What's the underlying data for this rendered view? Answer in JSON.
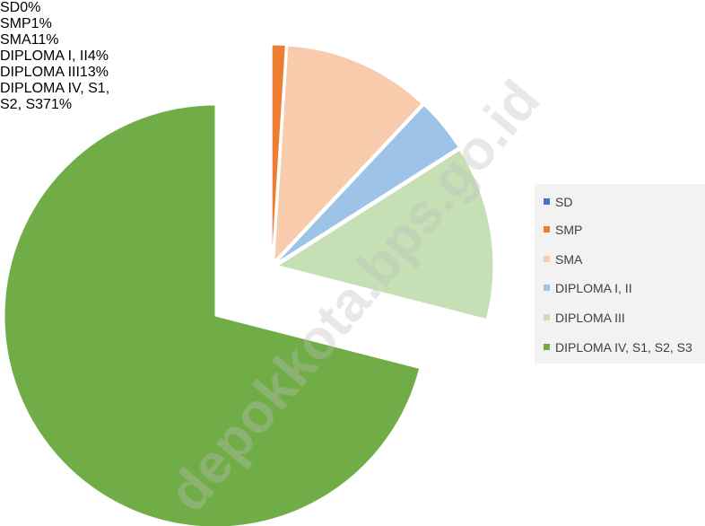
{
  "chart_data": {
    "type": "pie",
    "categories": [
      "SD",
      "SMP",
      "SMA",
      "DIPLOMA I, II",
      "DIPLOMA III",
      "DIPLOMA IV, S1, S2, S3"
    ],
    "values": [
      0,
      1,
      11,
      4,
      13,
      71
    ],
    "value_labels": [
      "0%",
      "1%",
      "11%",
      "4%",
      "13%",
      "71%"
    ],
    "colors": [
      "#4472c4",
      "#ed7d31",
      "#f8cbad",
      "#9dc3e6",
      "#c5e0b4",
      "#70ad47"
    ],
    "legend": "right",
    "watermark": "depokkota.bps.go.id"
  }
}
